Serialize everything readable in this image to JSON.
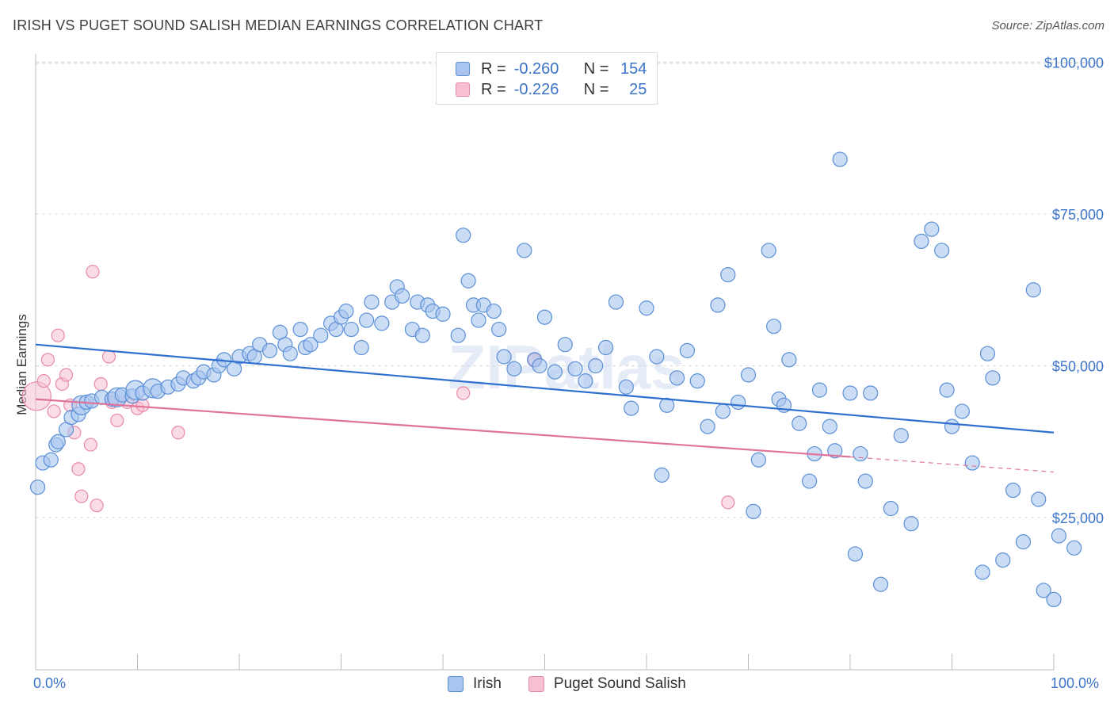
{
  "header": {
    "title": "IRISH VS PUGET SOUND SALISH MEDIAN EARNINGS CORRELATION CHART",
    "source": "Source: ZipAtlas.com"
  },
  "colors": {
    "irish_fill": "#a9c4ee",
    "irish_stroke": "#5b8fd6",
    "irish_line": "#2f6fd0",
    "salish_fill": "#f6c0d1",
    "salish_stroke": "#e889a8",
    "salish_line": "#e0739b",
    "tick_label": "#3b74c8",
    "grid": "#d9d9d9"
  },
  "legend": {
    "rows": [
      {
        "r_label": "R =",
        "r_value": "-0.260",
        "n_label": "N =",
        "n_value": "154"
      },
      {
        "r_label": "R =",
        "r_value": "-0.226",
        "n_label": "N =",
        "n_value": "25"
      }
    ]
  },
  "bottom_legend": {
    "irish": "Irish",
    "salish": "Puget Sound Salish"
  },
  "chart_data": {
    "type": "scatter",
    "title": "IRISH VS PUGET SOUND SALISH MEDIAN EARNINGS CORRELATION CHART",
    "xlabel": "",
    "ylabel": "Median Earnings",
    "x_tick_labels": [
      "0.0%",
      "100.0%"
    ],
    "y_tick_labels": [
      "$25,000",
      "$50,000",
      "$75,000",
      "$100,000"
    ],
    "y_ticks": [
      25000,
      50000,
      75000,
      100000
    ],
    "xlim": [
      0,
      100
    ],
    "ylim": [
      0,
      102000
    ],
    "grid": true,
    "legend_position": "top-center",
    "watermark": "ZIPatlas",
    "series": [
      {
        "name": "Irish",
        "trend": {
          "x": [
            0,
            100
          ],
          "y": [
            53500,
            39000
          ]
        },
        "points": [
          [
            0.2,
            30000,
            9
          ],
          [
            0.7,
            34000,
            9
          ],
          [
            1.5,
            34500,
            9
          ],
          [
            2,
            37000,
            9
          ],
          [
            2.2,
            37500,
            9
          ],
          [
            3,
            39500,
            9
          ],
          [
            3.5,
            41500,
            9
          ],
          [
            4.2,
            42000,
            9
          ],
          [
            4.5,
            43500,
            12
          ],
          [
            5,
            44000,
            9
          ],
          [
            5.5,
            44200,
            9
          ],
          [
            6.5,
            44800,
            9
          ],
          [
            7.5,
            44500,
            9
          ],
          [
            8,
            44800,
            12
          ],
          [
            8.5,
            45200,
            9
          ],
          [
            9.5,
            45000,
            9
          ],
          [
            9.8,
            46000,
            12
          ],
          [
            10.5,
            45500,
            9
          ],
          [
            11.5,
            46300,
            12
          ],
          [
            12,
            45800,
            9
          ],
          [
            13,
            46500,
            9
          ],
          [
            14,
            47000,
            9
          ],
          [
            14.5,
            48000,
            9
          ],
          [
            15.5,
            47500,
            9
          ],
          [
            16,
            48000,
            9
          ],
          [
            16.5,
            49000,
            9
          ],
          [
            17.5,
            48500,
            9
          ],
          [
            18,
            50000,
            9
          ],
          [
            18.5,
            51000,
            9
          ],
          [
            19.5,
            49500,
            9
          ],
          [
            20,
            51500,
            9
          ],
          [
            21,
            52000,
            9
          ],
          [
            21.5,
            51500,
            9
          ],
          [
            22,
            53500,
            9
          ],
          [
            23,
            52500,
            9
          ],
          [
            24,
            55500,
            9
          ],
          [
            24.5,
            53500,
            9
          ],
          [
            25,
            52000,
            9
          ],
          [
            26,
            56000,
            9
          ],
          [
            26.5,
            53000,
            9
          ],
          [
            27,
            53500,
            9
          ],
          [
            28,
            55000,
            9
          ],
          [
            29,
            57000,
            9
          ],
          [
            29.5,
            56000,
            9
          ],
          [
            30,
            58000,
            9
          ],
          [
            30.5,
            59000,
            9
          ],
          [
            31,
            56000,
            9
          ],
          [
            32,
            53000,
            9
          ],
          [
            32.5,
            57500,
            9
          ],
          [
            33,
            60500,
            9
          ],
          [
            34,
            57000,
            9
          ],
          [
            35,
            60500,
            9
          ],
          [
            35.5,
            63000,
            9
          ],
          [
            36,
            61500,
            9
          ],
          [
            37,
            56000,
            9
          ],
          [
            37.5,
            60500,
            9
          ],
          [
            38,
            55000,
            9
          ],
          [
            38.5,
            60000,
            9
          ],
          [
            39,
            59000,
            9
          ],
          [
            40,
            58500,
            9
          ],
          [
            41.5,
            55000,
            9
          ],
          [
            42,
            71500,
            9
          ],
          [
            42.5,
            64000,
            9
          ],
          [
            43,
            60000,
            9
          ],
          [
            43.5,
            57500,
            9
          ],
          [
            44,
            60000,
            9
          ],
          [
            45,
            59000,
            9
          ],
          [
            45.5,
            56000,
            9
          ],
          [
            46,
            51500,
            9
          ],
          [
            47,
            49500,
            9
          ],
          [
            48,
            69000,
            9
          ],
          [
            49,
            51000,
            9
          ],
          [
            49.5,
            50000,
            9
          ],
          [
            50,
            58000,
            9
          ],
          [
            51,
            49000,
            9
          ],
          [
            52,
            53500,
            9
          ],
          [
            53,
            49500,
            9
          ],
          [
            54,
            47500,
            9
          ],
          [
            55,
            50000,
            9
          ],
          [
            56,
            53000,
            9
          ],
          [
            57,
            60500,
            9
          ],
          [
            58,
            46500,
            9
          ],
          [
            58.5,
            43000,
            9
          ],
          [
            60,
            59500,
            9
          ],
          [
            61,
            51500,
            9
          ],
          [
            61.5,
            32000,
            9
          ],
          [
            62,
            43500,
            9
          ],
          [
            63,
            48000,
            9
          ],
          [
            64,
            52500,
            9
          ],
          [
            65,
            47500,
            9
          ],
          [
            66,
            40000,
            9
          ],
          [
            67,
            60000,
            9
          ],
          [
            67.5,
            42500,
            9
          ],
          [
            68,
            65000,
            9
          ],
          [
            69,
            44000,
            9
          ],
          [
            70,
            48500,
            9
          ],
          [
            70.5,
            26000,
            9
          ],
          [
            71,
            34500,
            9
          ],
          [
            72,
            69000,
            9
          ],
          [
            72.5,
            56500,
            9
          ],
          [
            73,
            44500,
            9
          ],
          [
            73.5,
            43500,
            9
          ],
          [
            74,
            51000,
            9
          ],
          [
            75,
            40500,
            9
          ],
          [
            76,
            31000,
            9
          ],
          [
            76.5,
            35500,
            9
          ],
          [
            77,
            46000,
            9
          ],
          [
            78,
            40000,
            9
          ],
          [
            78.5,
            36000,
            9
          ],
          [
            79,
            84000,
            9
          ],
          [
            80,
            45500,
            9
          ],
          [
            80.5,
            19000,
            9
          ],
          [
            81,
            35500,
            9
          ],
          [
            81.5,
            31000,
            9
          ],
          [
            82,
            45500,
            9
          ],
          [
            83,
            14000,
            9
          ],
          [
            84,
            26500,
            9
          ],
          [
            85,
            38500,
            9
          ],
          [
            86,
            24000,
            9
          ],
          [
            87,
            70500,
            9
          ],
          [
            88,
            72500,
            9
          ],
          [
            89,
            69000,
            9
          ],
          [
            89.5,
            46000,
            9
          ],
          [
            90,
            40000,
            9
          ],
          [
            91,
            42500,
            9
          ],
          [
            92,
            34000,
            9
          ],
          [
            93,
            16000,
            9
          ],
          [
            93.5,
            52000,
            9
          ],
          [
            94,
            48000,
            9
          ],
          [
            95,
            18000,
            9
          ],
          [
            96,
            29500,
            9
          ],
          [
            97,
            21000,
            9
          ],
          [
            98,
            62500,
            9
          ],
          [
            98.5,
            28000,
            9
          ],
          [
            99,
            13000,
            9
          ],
          [
            100,
            11500,
            9
          ],
          [
            100.5,
            22000,
            9
          ],
          [
            102,
            20000,
            9
          ]
        ]
      },
      {
        "name": "Puget Sound Salish",
        "trend": {
          "x": [
            0,
            80
          ],
          "y": [
            44500,
            35000
          ]
        },
        "trend_dashed": {
          "x": [
            80,
            100
          ],
          "y": [
            35000,
            32500
          ]
        },
        "points": [
          [
            0.1,
            45000,
            18
          ],
          [
            0.8,
            47500,
            8
          ],
          [
            1.2,
            51000,
            8
          ],
          [
            1.8,
            42500,
            8
          ],
          [
            2.2,
            55000,
            8
          ],
          [
            2.6,
            47000,
            8
          ],
          [
            3,
            48500,
            8
          ],
          [
            3.4,
            43500,
            8
          ],
          [
            3.8,
            39000,
            8
          ],
          [
            4.2,
            33000,
            8
          ],
          [
            4.5,
            28500,
            8
          ],
          [
            5.4,
            37000,
            8
          ],
          [
            5.6,
            65500,
            8
          ],
          [
            6,
            27000,
            8
          ],
          [
            6.4,
            47000,
            8
          ],
          [
            7.2,
            51500,
            8
          ],
          [
            7.5,
            44000,
            8
          ],
          [
            8,
            41000,
            8
          ],
          [
            9,
            44000,
            8
          ],
          [
            10,
            43000,
            8
          ],
          [
            10.5,
            43500,
            8
          ],
          [
            14,
            39000,
            8
          ],
          [
            42,
            45500,
            8
          ],
          [
            49,
            51000,
            8
          ],
          [
            68,
            27500,
            8
          ]
        ]
      }
    ]
  }
}
